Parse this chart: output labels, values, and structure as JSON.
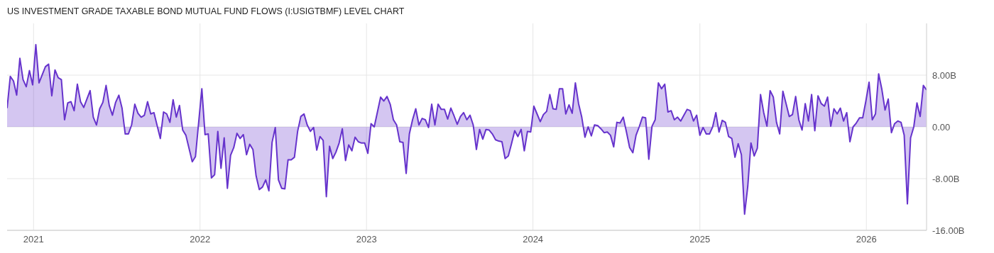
{
  "chart_data": {
    "type": "area",
    "title": "US INVESTMENT GRADE TAXABLE BOND MUTUAL FUND FLOWS (I:USIGTBMF) LEVEL CHART",
    "x": [
      "2020-11-04",
      "2020-11-11",
      "2020-11-18",
      "2020-11-25",
      "2020-12-02",
      "2020-12-09",
      "2020-12-16",
      "2020-12-23",
      "2020-12-30",
      "2021-01-06",
      "2021-01-13",
      "2021-01-27",
      "2021-02-03",
      "2021-02-10",
      "2021-02-17",
      "2021-02-24",
      "2021-03-03",
      "2021-03-10",
      "2021-03-17",
      "2021-03-24",
      "2021-03-31",
      "2021-04-07",
      "2021-04-14",
      "2021-04-21",
      "2021-05-05",
      "2021-05-12",
      "2021-05-19",
      "2021-05-26",
      "2021-06-02",
      "2021-06-09",
      "2021-06-16",
      "2021-06-23",
      "2021-06-30",
      "2021-07-07",
      "2021-07-14",
      "2021-07-21",
      "2021-07-28",
      "2021-08-04",
      "2021-08-11",
      "2021-08-18",
      "2021-08-25",
      "2021-09-01",
      "2021-09-08",
      "2021-09-15",
      "2021-09-22",
      "2021-10-06",
      "2021-10-13",
      "2021-10-20",
      "2021-10-27",
      "2021-11-03",
      "2021-11-10",
      "2021-11-17",
      "2021-11-24",
      "2021-12-01",
      "2021-12-15",
      "2021-12-22",
      "2022-01-05",
      "2022-01-12",
      "2022-01-19",
      "2022-01-26",
      "2022-02-02",
      "2022-02-09",
      "2022-02-16",
      "2022-02-23",
      "2022-03-02",
      "2022-03-09",
      "2022-03-16",
      "2022-03-23",
      "2022-03-30",
      "2022-04-06",
      "2022-04-13",
      "2022-04-20",
      "2022-04-27",
      "2022-05-04",
      "2022-05-11",
      "2022-05-18",
      "2022-05-25",
      "2022-06-01",
      "2022-06-08",
      "2022-06-15",
      "2022-06-22",
      "2022-06-29",
      "2022-07-06",
      "2022-07-13",
      "2022-07-20",
      "2022-07-27",
      "2022-08-03",
      "2022-08-10",
      "2022-08-17",
      "2022-08-24",
      "2022-08-31",
      "2022-09-07",
      "2022-09-14",
      "2022-09-21",
      "2022-09-28",
      "2022-10-05",
      "2022-10-12",
      "2022-10-19",
      "2022-10-26",
      "2022-11-02",
      "2022-11-09",
      "2022-11-16",
      "2022-11-23",
      "2022-11-30",
      "2022-12-07",
      "2022-12-14",
      "2022-12-21",
      "2022-12-28",
      "2023-01-04",
      "2023-01-11",
      "2023-01-18",
      "2023-01-25",
      "2023-02-01",
      "2023-02-08",
      "2023-02-15",
      "2023-02-22",
      "2023-03-01",
      "2023-03-08",
      "2023-03-15",
      "2023-03-22",
      "2023-03-29",
      "2023-04-05",
      "2023-04-12",
      "2023-04-19",
      "2023-04-26",
      "2023-05-03",
      "2023-05-10",
      "2023-05-17",
      "2023-05-24",
      "2023-05-31",
      "2023-06-07",
      "2023-06-14",
      "2023-06-21",
      "2023-06-28",
      "2023-07-05",
      "2023-07-12",
      "2023-07-19",
      "2023-07-26",
      "2023-08-02",
      "2023-08-09",
      "2023-08-16",
      "2023-08-23",
      "2023-08-30",
      "2023-09-06",
      "2023-09-13",
      "2023-09-20",
      "2023-09-27",
      "2023-10-04",
      "2023-10-11",
      "2023-10-18",
      "2023-10-25",
      "2023-11-01",
      "2023-11-08",
      "2023-11-15",
      "2023-11-22",
      "2023-11-29",
      "2023-12-06",
      "2023-12-13",
      "2023-12-20",
      "2023-12-27",
      "2024-01-03",
      "2024-01-10",
      "2024-01-17",
      "2024-01-24",
      "2024-01-31",
      "2024-02-07",
      "2024-02-14",
      "2024-02-21",
      "2024-02-28",
      "2024-03-06",
      "2024-03-13",
      "2024-03-20",
      "2024-03-27",
      "2024-04-03",
      "2024-04-10",
      "2024-04-17",
      "2024-04-24",
      "2024-05-01",
      "2024-05-08",
      "2024-05-15",
      "2024-05-22",
      "2024-05-29",
      "2024-06-05",
      "2024-06-12",
      "2024-06-19",
      "2024-06-26",
      "2024-07-03",
      "2024-07-10",
      "2024-07-17",
      "2024-07-24",
      "2024-07-31",
      "2024-08-07",
      "2024-08-14",
      "2024-08-21",
      "2024-08-28",
      "2024-09-04",
      "2024-09-11",
      "2024-09-18",
      "2024-09-25",
      "2024-10-02",
      "2024-10-09",
      "2024-10-16",
      "2024-10-23",
      "2024-10-30",
      "2024-11-06",
      "2024-11-13",
      "2024-11-20",
      "2024-11-27",
      "2024-12-04",
      "2024-12-11",
      "2024-12-18",
      "2024-12-25",
      "2025-01-01",
      "2025-01-08",
      "2025-01-15",
      "2025-01-22",
      "2025-01-29",
      "2025-02-05",
      "2025-02-12",
      "2025-02-19",
      "2025-02-26",
      "2025-03-05",
      "2025-03-12",
      "2025-03-19",
      "2025-03-26",
      "2025-04-02",
      "2025-04-09",
      "2025-04-16",
      "2025-04-23",
      "2025-04-30",
      "2025-05-07",
      "2025-05-14",
      "2025-05-21",
      "2025-05-28",
      "2025-06-04",
      "2025-06-11",
      "2025-06-18",
      "2025-06-25",
      "2025-07-02",
      "2025-07-09",
      "2025-07-16",
      "2025-07-23",
      "2025-07-30",
      "2025-08-06",
      "2025-08-13",
      "2025-08-20",
      "2025-08-27",
      "2025-09-03",
      "2025-09-10",
      "2025-09-17",
      "2025-09-24",
      "2025-10-01",
      "2025-10-08",
      "2025-10-15",
      "2025-10-22",
      "2025-10-29",
      "2025-11-05",
      "2025-11-12",
      "2025-11-19",
      "2025-11-26",
      "2025-12-03",
      "2025-12-10",
      "2025-12-17",
      "2025-12-24",
      "2025-12-31",
      "2026-01-07",
      "2026-01-14",
      "2026-01-21",
      "2026-01-28",
      "2026-02-04",
      "2026-02-11",
      "2026-02-18",
      "2026-02-25",
      "2026-03-04",
      "2026-03-11",
      "2026-03-18",
      "2026-03-25",
      "2026-04-01",
      "2026-04-08",
      "2026-04-15",
      "2026-04-22",
      "2026-04-29",
      "2026-05-06",
      "2026-05-13"
    ],
    "series": [
      {
        "color": "#6633cc",
        "values": [
          2.9,
          7.8,
          7.1,
          4.9,
          10.6,
          7.3,
          6.2,
          8.7,
          6.5,
          12.7,
          6.8,
          9.3,
          9.7,
          4.8,
          8.8,
          7.6,
          7.3,
          1.1,
          3.7,
          3.9,
          2.5,
          6.6,
          3.9,
          3.0,
          5.6,
          1.5,
          0.3,
          2.8,
          3.8,
          6.4,
          3.3,
          1.8,
          3.8,
          4.9,
          2.9,
          -1.1,
          -1.1,
          0.3,
          3.5,
          2.1,
          1.5,
          1.8,
          3.9,
          2.0,
          2.2,
          -1.8,
          2.3,
          2.0,
          0.7,
          4.2,
          1.5,
          3.3,
          -0.5,
          -1.3,
          -5.4,
          -4.6,
          5.9,
          -1.2,
          -1.1,
          -7.9,
          -7.4,
          -0.7,
          -6.4,
          -1.7,
          -9.5,
          -4.4,
          -3.2,
          -1.0,
          -1.8,
          -1.2,
          -4.3,
          -2.7,
          -3.5,
          -7.6,
          -9.7,
          -9.3,
          -8.2,
          -9.9,
          -2.4,
          -0.1,
          -8.2,
          -9.5,
          -9.6,
          -5.1,
          -5.1,
          -4.7,
          -0.7,
          1.6,
          2.0,
          0.3,
          -0.7,
          -0.1,
          -3.6,
          -1.5,
          -2.1,
          -10.8,
          -3.0,
          -4.9,
          -3.9,
          -2.5,
          -0.3,
          -5.2,
          -2.8,
          -3.7,
          -1.6,
          -2.3,
          -2.5,
          -2.5,
          -4.1,
          0.5,
          0,
          2.3,
          4.6,
          4.0,
          4.7,
          3.5,
          1.1,
          0.3,
          -2.3,
          -2.4,
          -7.2,
          -1.1,
          1.1,
          2.8,
          0.3,
          1.3,
          1.1,
          -0.1,
          3.5,
          0.3,
          3.5,
          2.7,
          2.7,
          1.2,
          2.9,
          1.7,
          0.4,
          1.6,
          2.2,
          1.1,
          1.8,
          0.3,
          -3.5,
          -0.4,
          -1.9,
          -0.4,
          -0.5,
          -1.1,
          -2.0,
          -2.2,
          -2.3,
          -4.9,
          -4.5,
          -2.6,
          -0.6,
          -1.5,
          -0.4,
          -3.7,
          -0.7,
          -0.8,
          3.2,
          2.0,
          0.8,
          1.9,
          2.4,
          5.0,
          2.8,
          2.7,
          5.9,
          5.9,
          2.0,
          3.4,
          2.1,
          6.8,
          3.6,
          1.5,
          -1.6,
          0,
          -1.4,
          0.3,
          0.2,
          -0.3,
          -0.9,
          -0.8,
          -1.3,
          -3.1,
          0.7,
          0.6,
          1.5,
          -0.8,
          -3.2,
          -4.0,
          -1.3,
          0,
          1.5,
          1.4,
          -5.0,
          0.1,
          1.1,
          6.8,
          5.9,
          6.6,
          2.3,
          2.5,
          1.1,
          1.5,
          0.9,
          1.8,
          2.7,
          2.5,
          0.9,
          1.8,
          -1.3,
          -0.1,
          -1.1,
          -1.1,
          0,
          2.2,
          -0.8,
          1.0,
          0.7,
          -1.5,
          -1.8,
          -4.7,
          -2.6,
          -4.3,
          -13.5,
          -9.2,
          -2.5,
          -4.5,
          -3.3,
          5.0,
          2.2,
          0.1,
          5.6,
          4.6,
          0.7,
          -1.1,
          5.5,
          3.6,
          1.6,
          1.9,
          4.7,
          1.1,
          -0.5,
          3.6,
          0.9,
          5.0,
          -0.6,
          4.8,
          3.6,
          3.2,
          4.6,
          0.1,
          2.8,
          2.0,
          2.9,
          0.9,
          2.2,
          -2.3,
          0,
          0.6,
          1.4,
          1.4,
          4.0,
          6.9,
          1.1,
          2.0,
          8.2,
          5.8,
          2.6,
          4.3,
          -0.9,
          0.5,
          0.9,
          0.7,
          -1.3,
          -11.9,
          -1.7,
          0,
          3.7,
          1.6,
          6.4,
          5.7
        ]
      }
    ],
    "xlim": [
      "2020-11-04",
      "2026-05-13"
    ],
    "xticks": [
      "2021",
      "2022",
      "2023",
      "2024",
      "2025",
      "2026"
    ],
    "ylim": [
      -16,
      16
    ],
    "yticks": [
      {
        "value": 8,
        "label": "8.00B"
      },
      {
        "value": 0,
        "label": "0.00"
      },
      {
        "value": -8,
        "label": "-8.00B"
      },
      {
        "value": -16,
        "label": "-16.00B"
      }
    ],
    "grid": true
  }
}
